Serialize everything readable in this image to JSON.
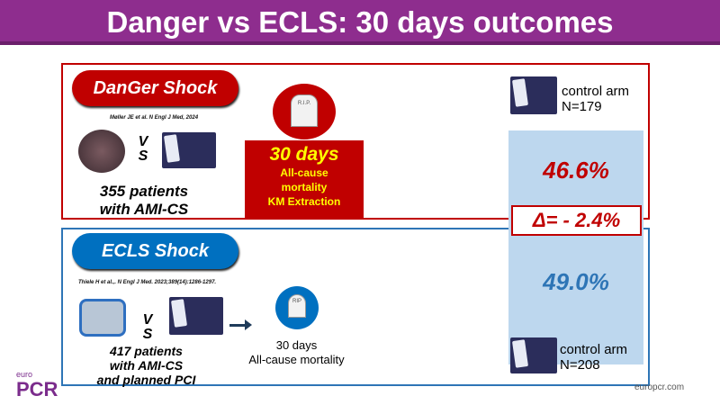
{
  "title": "Danger vs ECLS: 30 days outcomes",
  "danger": {
    "label": "DanGer Shock",
    "reference": "Møller JE et al. N Engl J Med, 2024",
    "vs": "V S",
    "patients_line1": "355 patients",
    "patients_line2": "with AMI-CS",
    "rip": "R.I.P.",
    "outcome_days": "30 days",
    "outcome_line1": "All-cause",
    "outcome_line2": "mortality",
    "outcome_line3": "KM Extraction",
    "control": "control arm N=179",
    "mortality": "46.6%"
  },
  "ecls": {
    "label": "ECLS Shock",
    "reference": "Thiele H et al.,. N Engl J Med. 2023;389(14):1286-1297.",
    "vs": "V S",
    "patients_line1": "417 patients",
    "patients_line2": "with AMI-CS",
    "patients_line3": "and planned PCI",
    "rip": "RIP",
    "outcome_days": "30 days",
    "outcome_line1": "All-cause mortality",
    "control": "control arm N=208",
    "mortality": "49.0%"
  },
  "delta": "Δ= - 2.4%",
  "logo": "euro PCR",
  "footer_url": "europcr.com",
  "colors": {
    "title_bar": "#8e2d8e",
    "danger": "#c00000",
    "ecls": "#2e75b6",
    "panel": "#bdd7ee"
  }
}
